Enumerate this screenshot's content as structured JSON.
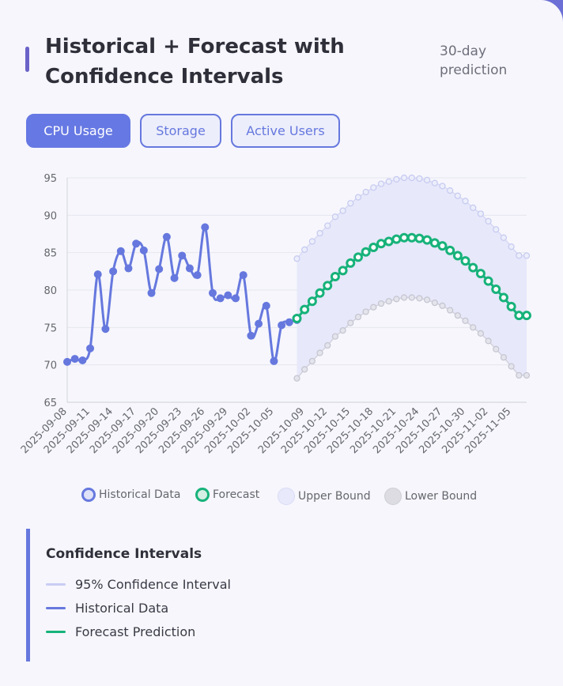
{
  "header": {
    "title": "Historical + Forecast with Confidence Intervals",
    "subtitle": "30-day prediction"
  },
  "tabs": [
    {
      "label": "CPU Usage",
      "active": true
    },
    {
      "label": "Storage",
      "active": false
    },
    {
      "label": "Active Users",
      "active": false
    }
  ],
  "legend": {
    "items": [
      {
        "label": "Historical Data",
        "color": "#6678de"
      },
      {
        "label": "Forecast",
        "color": "#17b27a"
      },
      {
        "label": "Upper Bound",
        "color": "#c9ccf2"
      },
      {
        "label": "Lower Bound",
        "color": "#b8b8c4"
      }
    ]
  },
  "ci_panel": {
    "title": "Confidence Intervals",
    "items": [
      {
        "label": "95% Confidence Interval",
        "color": "#c9ccf5"
      },
      {
        "label": "Historical Data",
        "color": "#6678de"
      },
      {
        "label": "Forecast Prediction",
        "color": "#17b27a"
      }
    ]
  },
  "chart_data": {
    "type": "line",
    "ylim": [
      65,
      95
    ],
    "yticks": [
      65,
      70,
      75,
      80,
      85,
      90,
      95
    ],
    "xtick_labels": [
      "2025-09-08",
      "2025-09-11",
      "2025-09-14",
      "2025-09-17",
      "2025-09-20",
      "2025-09-23",
      "2025-09-26",
      "2025-09-29",
      "2025-10-02",
      "2025-10-05",
      "2025-10-09",
      "2025-10-12",
      "2025-10-15",
      "2025-10-18",
      "2025-10-21",
      "2025-10-24",
      "2025-10-27",
      "2025-10-30",
      "2025-11-02",
      "2025-11-05"
    ],
    "grid": true,
    "historical": {
      "name": "Historical Data",
      "x": [
        "2025-09-08",
        "2025-09-09",
        "2025-09-10",
        "2025-09-11",
        "2025-09-12",
        "2025-09-13",
        "2025-09-14",
        "2025-09-15",
        "2025-09-16",
        "2025-09-17",
        "2025-09-18",
        "2025-09-19",
        "2025-09-20",
        "2025-09-21",
        "2025-09-22",
        "2025-09-23",
        "2025-09-24",
        "2025-09-25",
        "2025-09-26",
        "2025-09-27",
        "2025-09-28",
        "2025-09-29",
        "2025-09-30",
        "2025-10-01",
        "2025-10-02",
        "2025-10-03",
        "2025-10-04",
        "2025-10-05",
        "2025-10-06",
        "2025-10-07",
        "2025-10-08"
      ],
      "values": [
        70.4,
        70.8,
        70.6,
        72.2,
        82.1,
        74.8,
        82.5,
        85.2,
        82.9,
        86.2,
        85.3,
        79.6,
        82.8,
        87.1,
        81.6,
        84.6,
        82.9,
        82.0,
        88.4,
        79.6,
        78.9,
        79.3,
        78.9,
        82.0,
        73.9,
        75.5,
        77.9,
        70.5,
        75.3,
        75.7,
        76.0
      ]
    },
    "forecast": {
      "name": "Forecast",
      "x": [
        "2025-10-08",
        "2025-10-09",
        "2025-10-10",
        "2025-10-11",
        "2025-10-12",
        "2025-10-13",
        "2025-10-14",
        "2025-10-15",
        "2025-10-16",
        "2025-10-17",
        "2025-10-18",
        "2025-10-19",
        "2025-10-20",
        "2025-10-21",
        "2025-10-22",
        "2025-10-23",
        "2025-10-24",
        "2025-10-25",
        "2025-10-26",
        "2025-10-27",
        "2025-10-28",
        "2025-10-29",
        "2025-10-30",
        "2025-10-31",
        "2025-11-01",
        "2025-11-02",
        "2025-11-03",
        "2025-11-04",
        "2025-11-05",
        "2025-11-06",
        "2025-11-07"
      ],
      "values": [
        76.2,
        77.4,
        78.5,
        79.6,
        80.6,
        81.8,
        82.6,
        83.6,
        84.4,
        85.1,
        85.7,
        86.2,
        86.5,
        86.8,
        87.0,
        87.0,
        86.9,
        86.7,
        86.3,
        85.9,
        85.3,
        84.6,
        83.9,
        83.0,
        82.2,
        81.2,
        80.1,
        79.0,
        77.8,
        76.6,
        76.6
      ]
    },
    "upper_bound": {
      "name": "Upper Bound",
      "values": [
        84.2,
        85.4,
        86.5,
        87.6,
        88.6,
        89.8,
        90.6,
        91.6,
        92.4,
        93.1,
        93.7,
        94.2,
        94.5,
        94.8,
        95.0,
        95.0,
        94.9,
        94.7,
        94.3,
        93.9,
        93.3,
        92.6,
        91.9,
        91.0,
        90.2,
        89.2,
        88.1,
        87.0,
        85.8,
        84.6,
        84.6
      ]
    },
    "lower_bound": {
      "name": "Lower Bound",
      "values": [
        68.2,
        69.4,
        70.5,
        71.6,
        72.6,
        73.8,
        74.6,
        75.6,
        76.4,
        77.1,
        77.7,
        78.2,
        78.5,
        78.8,
        79.0,
        79.0,
        78.9,
        78.7,
        78.3,
        77.9,
        77.3,
        76.6,
        75.9,
        75.0,
        74.2,
        73.2,
        72.1,
        71.0,
        69.8,
        68.6,
        68.6
      ]
    }
  }
}
